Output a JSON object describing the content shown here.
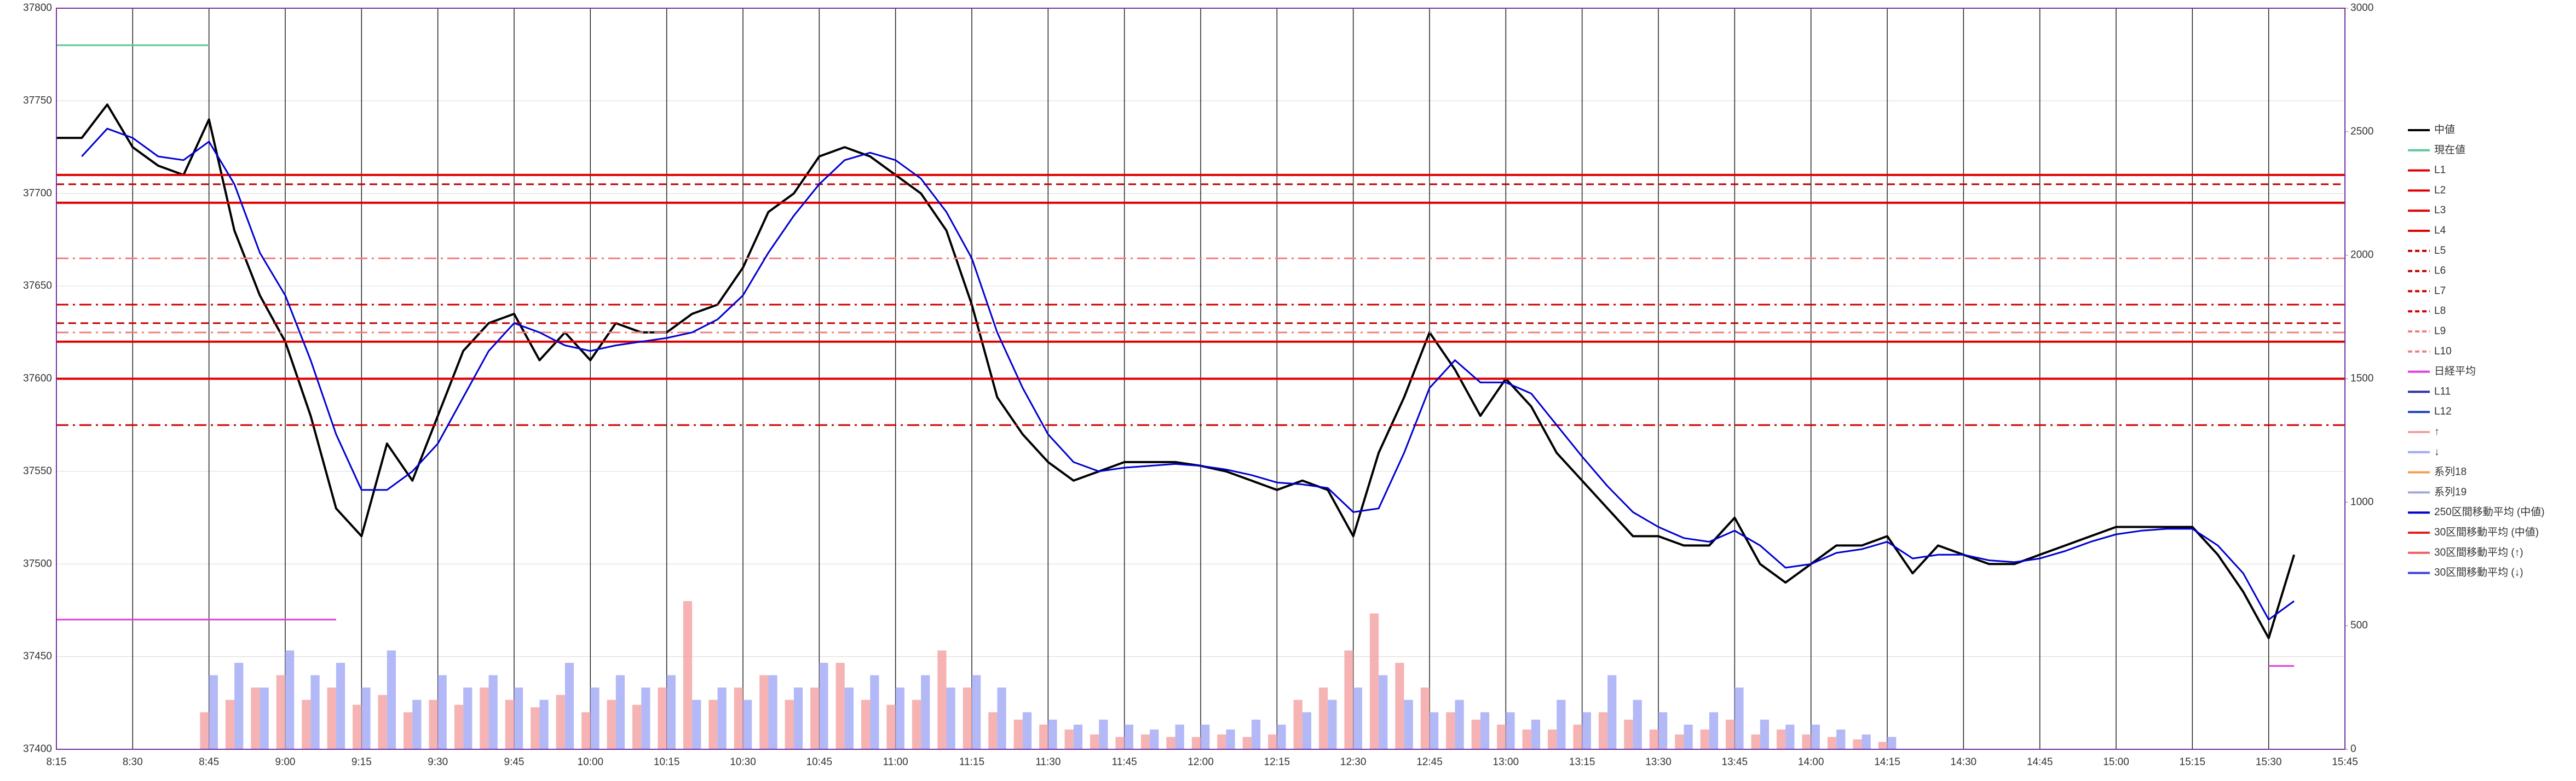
{
  "chart_data": {
    "type": "line",
    "xlim": [
      495,
      945
    ],
    "xticks": [
      {
        "value": 495,
        "label": "8:15"
      },
      {
        "value": 510,
        "label": "8:30"
      },
      {
        "value": 525,
        "label": "8:45"
      },
      {
        "value": 540,
        "label": "9:00"
      },
      {
        "value": 555,
        "label": "9:15"
      },
      {
        "value": 570,
        "label": "9:30"
      },
      {
        "value": 585,
        "label": "9:45"
      },
      {
        "value": 600,
        "label": "10:00"
      },
      {
        "value": 615,
        "label": "10:15"
      },
      {
        "value": 630,
        "label": "10:30"
      },
      {
        "value": 645,
        "label": "10:45"
      },
      {
        "value": 660,
        "label": "11:00"
      },
      {
        "value": 675,
        "label": "11:15"
      },
      {
        "value": 690,
        "label": "11:30"
      },
      {
        "value": 705,
        "label": "11:45"
      },
      {
        "value": 720,
        "label": "12:00"
      },
      {
        "value": 735,
        "label": "12:15"
      },
      {
        "value": 750,
        "label": "12:30"
      },
      {
        "value": 765,
        "label": "12:45"
      },
      {
        "value": 780,
        "label": "13:00"
      },
      {
        "value": 795,
        "label": "13:15"
      },
      {
        "value": 810,
        "label": "13:30"
      },
      {
        "value": 825,
        "label": "13:45"
      },
      {
        "value": 840,
        "label": "14:00"
      },
      {
        "value": 855,
        "label": "14:15"
      },
      {
        "value": 870,
        "label": "14:30"
      },
      {
        "value": 885,
        "label": "14:45"
      },
      {
        "value": 900,
        "label": "15:00"
      },
      {
        "value": 915,
        "label": "15:15"
      },
      {
        "value": 930,
        "label": "15:30"
      },
      {
        "value": 945,
        "label": "15:45"
      }
    ],
    "ylim": [
      37400,
      37800
    ],
    "yticks": [
      37400,
      37450,
      37500,
      37550,
      37600,
      37650,
      37700,
      37750,
      37800
    ],
    "y2lim": [
      0,
      3000
    ],
    "y2ticks": [
      0,
      500,
      1000,
      1500,
      2000,
      2500,
      3000
    ],
    "grid": true,
    "legend": "right",
    "x": [
      495,
      500,
      505,
      510,
      515,
      520,
      525,
      530,
      535,
      540,
      545,
      550,
      555,
      560,
      565,
      570,
      575,
      580,
      585,
      590,
      595,
      600,
      605,
      610,
      615,
      620,
      625,
      630,
      635,
      640,
      645,
      650,
      655,
      660,
      665,
      670,
      675,
      680,
      685,
      690,
      695,
      700,
      705,
      710,
      715,
      720,
      725,
      730,
      735,
      740,
      745,
      750,
      755,
      760,
      765,
      770,
      775,
      780,
      785,
      790,
      795,
      800,
      805,
      810,
      815,
      820,
      825,
      830,
      835,
      840,
      845,
      850,
      855,
      860,
      865,
      870,
      875,
      880,
      885,
      890,
      895,
      900,
      905,
      910,
      915,
      920,
      925,
      930,
      935
    ],
    "series": [
      {
        "name": "中値",
        "color": "#000000",
        "values": [
          37730,
          37730,
          37748,
          37725,
          37715,
          37710,
          37740,
          37680,
          37645,
          37620,
          37580,
          37530,
          37515,
          37565,
          37545,
          37580,
          37615,
          37630,
          37635,
          37610,
          37625,
          37610,
          37630,
          37625,
          37625,
          37635,
          37640,
          37660,
          37690,
          37700,
          37720,
          37725,
          37720,
          37710,
          37700,
          37680,
          37640,
          37590,
          37570,
          37555,
          37545,
          37550,
          37555,
          37555,
          37555,
          37553,
          37550,
          37545,
          37540,
          37545,
          37540,
          37515,
          37560,
          37590,
          37625,
          37605,
          37580,
          37600,
          37585,
          37560,
          37545,
          37530,
          37515,
          37515,
          37510,
          37510,
          37525,
          37500,
          37490,
          37500,
          37510,
          37510,
          37515,
          37495,
          37510,
          37505,
          37500,
          37500,
          37505,
          37510,
          37515,
          37520,
          37520,
          37520,
          37520,
          37505,
          37485,
          37460,
          37505
        ]
      },
      {
        "name": "現在値",
        "color": "#5cc99a",
        "values": [
          37780,
          37780,
          37780,
          37780,
          37780,
          37780,
          37780,
          null,
          null,
          null,
          null,
          null,
          null,
          null,
          null,
          null,
          null,
          null,
          null,
          null,
          null,
          null,
          null,
          null,
          null,
          null,
          null,
          null,
          null,
          null,
          null,
          null,
          null,
          null,
          null,
          null,
          null,
          null,
          null,
          null,
          null,
          null,
          null,
          null,
          null,
          null,
          null,
          null,
          null,
          null,
          null,
          null,
          null,
          null,
          null,
          null,
          null,
          null,
          null,
          null,
          null,
          null,
          null,
          null,
          null,
          null,
          null,
          null,
          null,
          null,
          null,
          null,
          null,
          null,
          null,
          null,
          null,
          null,
          null,
          null,
          null,
          null,
          null,
          null,
          null,
          null,
          null,
          null,
          null
        ]
      },
      {
        "name": "L1",
        "color": "#e00000",
        "style": "solid",
        "level": 37710
      },
      {
        "name": "L2",
        "color": "#e00000",
        "style": "solid",
        "level": 37695
      },
      {
        "name": "L3",
        "color": "#e00000",
        "style": "solid",
        "level": 37620
      },
      {
        "name": "L4",
        "color": "#e00000",
        "style": "solid",
        "level": 37600
      },
      {
        "name": "L5",
        "color": "#c00000",
        "style": "dashed",
        "level": 37705
      },
      {
        "name": "L6",
        "color": "#c00000",
        "style": "dashed",
        "level": 37630
      },
      {
        "name": "L7",
        "color": "#d00000",
        "style": "dashdot",
        "level": 37640
      },
      {
        "name": "L8",
        "color": "#d00000",
        "style": "dashdot",
        "level": 37575
      },
      {
        "name": "L9",
        "color": "#f08080",
        "style": "dashdot",
        "level": 37625
      },
      {
        "name": "L10",
        "color": "#f08080",
        "style": "dashdot",
        "level": 37665
      },
      {
        "name": "日経平均",
        "color": "#e040e0",
        "values": [
          37470,
          37470,
          37470,
          37470,
          37470,
          37470,
          37470,
          37470,
          37470,
          37470,
          37470,
          37470,
          null,
          null,
          null,
          null,
          null,
          null,
          null,
          null,
          null,
          null,
          null,
          null,
          null,
          null,
          null,
          null,
          null,
          null,
          null,
          null,
          null,
          null,
          null,
          null,
          null,
          null,
          null,
          null,
          null,
          null,
          null,
          null,
          null,
          null,
          null,
          null,
          null,
          null,
          null,
          null,
          null,
          null,
          null,
          null,
          null,
          null,
          null,
          null,
          null,
          null,
          null,
          null,
          null,
          null,
          null,
          null,
          null,
          null,
          null,
          null,
          null,
          null,
          null,
          null,
          null,
          null,
          null,
          null,
          null,
          null,
          null,
          null,
          null,
          null,
          null,
          37445,
          37445
        ]
      },
      {
        "name": "L11",
        "color": "#3030a0"
      },
      {
        "name": "L12",
        "color": "#2040c0"
      },
      {
        "name": "↑",
        "color": "#f4a0a0",
        "axis": "y2",
        "values": [
          null,
          null,
          null,
          null,
          null,
          null,
          150,
          200,
          250,
          300,
          200,
          250,
          180,
          220,
          150,
          200,
          180,
          250,
          200,
          170,
          220,
          150,
          200,
          180,
          250,
          600,
          200,
          250,
          300,
          200,
          250,
          350,
          200,
          180,
          200,
          400,
          250,
          150,
          120,
          100,
          80,
          60,
          50,
          60,
          50,
          50,
          60,
          50,
          60,
          200,
          250,
          400,
          550,
          350,
          250,
          150,
          120,
          100,
          80,
          80,
          100,
          150,
          120,
          80,
          60,
          80,
          120,
          60,
          80,
          60,
          50,
          40,
          30,
          null,
          null,
          null,
          null,
          null,
          null,
          null,
          null,
          null,
          null,
          null,
          null,
          null,
          null,
          null,
          null
        ]
      },
      {
        "name": "↓",
        "color": "#a0a8f4",
        "axis": "y2",
        "values": [
          null,
          null,
          null,
          null,
          null,
          null,
          300,
          350,
          250,
          400,
          300,
          350,
          250,
          400,
          200,
          300,
          250,
          300,
          250,
          200,
          350,
          250,
          300,
          250,
          300,
          200,
          250,
          200,
          300,
          250,
          350,
          250,
          300,
          250,
          300,
          250,
          300,
          250,
          150,
          120,
          100,
          120,
          100,
          80,
          100,
          100,
          80,
          120,
          100,
          150,
          200,
          250,
          300,
          200,
          150,
          200,
          150,
          150,
          120,
          200,
          150,
          300,
          200,
          150,
          100,
          150,
          250,
          120,
          100,
          100,
          80,
          60,
          50,
          null,
          null,
          null,
          null,
          null,
          null,
          null,
          null,
          null,
          null,
          null,
          null,
          null,
          null,
          null,
          null
        ]
      },
      {
        "name": "系列18",
        "color": "#f0a050"
      },
      {
        "name": "系列19",
        "color": "#a0a8d8"
      },
      {
        "name": "250区間移動平均 (中値)",
        "color": "#0000d0",
        "values": [
          null,
          37720,
          37735,
          37730,
          37720,
          37718,
          37728,
          37705,
          37668,
          37645,
          37610,
          37570,
          37540,
          37540,
          37550,
          37565,
          37590,
          37615,
          37630,
          37625,
          37618,
          37615,
          37618,
          37620,
          37622,
          37625,
          37632,
          37645,
          37668,
          37688,
          37705,
          37718,
          37722,
          37718,
          37708,
          37690,
          37665,
          37625,
          37595,
          37570,
          37555,
          37550,
          37552,
          37553,
          37554,
          37553,
          37551,
          37548,
          37544,
          37543,
          37541,
          37528,
          37530,
          37560,
          37595,
          37610,
          37598,
          37598,
          37592,
          37575,
          37558,
          37542,
          37528,
          37520,
          37514,
          37512,
          37518,
          37510,
          37498,
          37500,
          37506,
          37508,
          37512,
          37503,
          37505,
          37505,
          37502,
          37501,
          37503,
          37507,
          37512,
          37516,
          37518,
          37519,
          37519,
          37510,
          37495,
          37470,
          37480
        ]
      },
      {
        "name": "30区間移動平均 (中値)",
        "color": "#e02020"
      },
      {
        "name": "30区間移動平均 (↑)",
        "color": "#f06060"
      },
      {
        "name": "30区間移動平均 (↓)",
        "color": "#4040e0"
      }
    ]
  }
}
